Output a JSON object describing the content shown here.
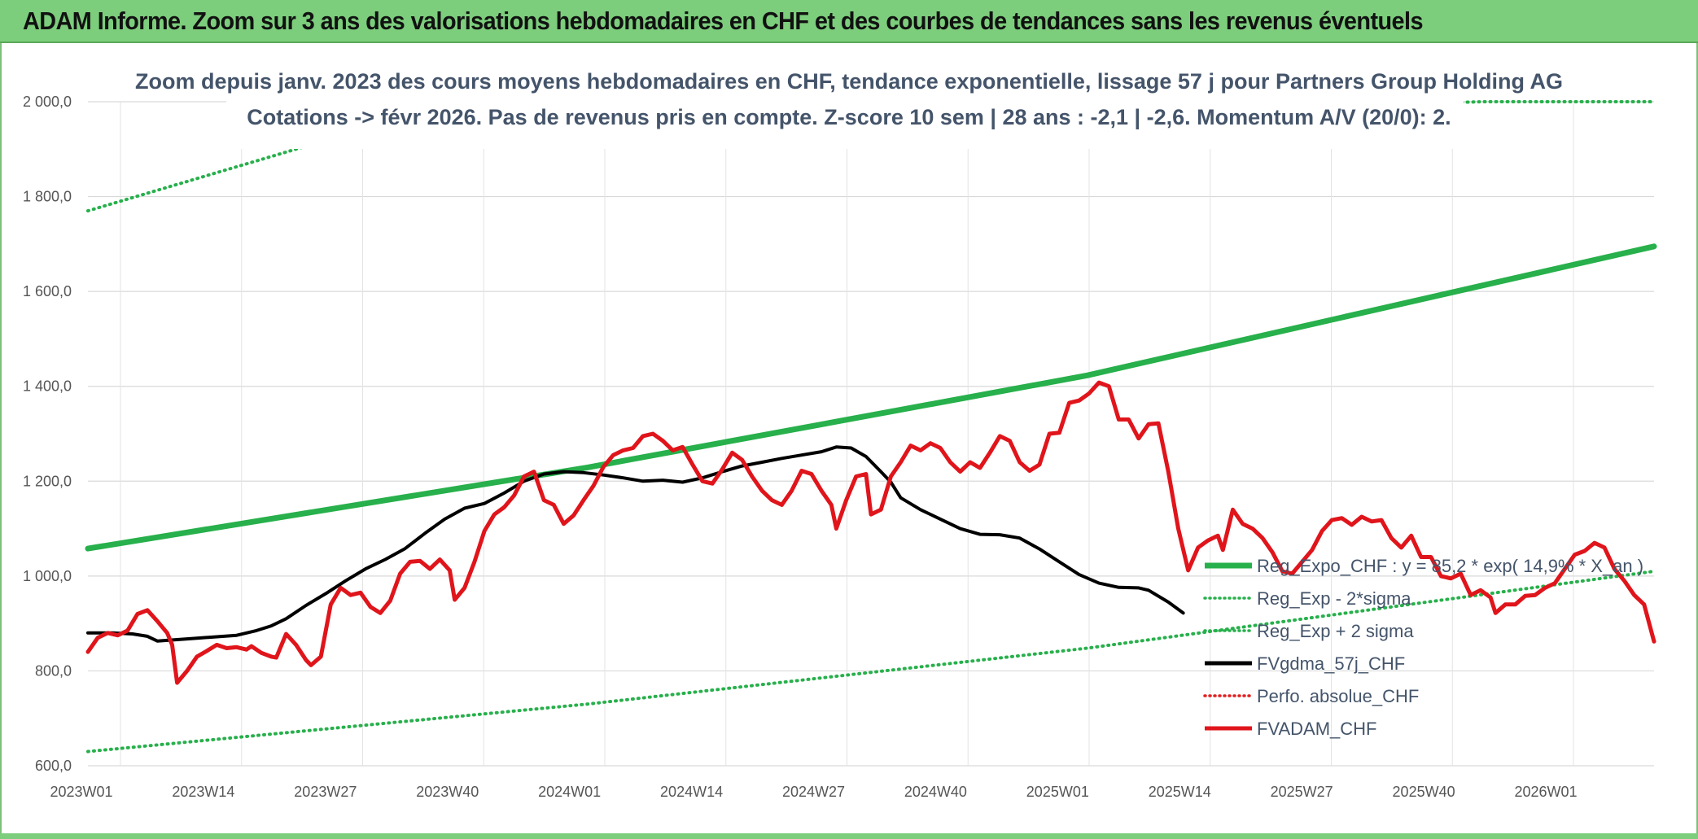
{
  "header": {
    "title": "ADAM Informe. Zoom sur 3 ans des valorisations hebdomadaires en CHF et des courbes de tendances sans les revenus éventuels"
  },
  "chart_data": {
    "type": "line",
    "title": "Zoom depuis janv. 2023 des cours moyens hebdomadaires en CHF, tendance exponentielle, lissage 57 j pour Partners Group Holding AG",
    "subtitle": "Cotations -> févr 2026. Pas de revenus pris en compte. Z-score 10 sem | 28 ans : -2,1 | -2,6. Momentum A/V (20/0): 2.",
    "xlabel": "",
    "ylabel": "",
    "ylim": [
      600,
      2000
    ],
    "y_ticks": [
      "600,0",
      "800,0",
      "1 000,0",
      "1 200,0",
      "1 400,0",
      "1 600,0",
      "1 800,0",
      "2 000,0"
    ],
    "x_ticks": [
      "2023W01",
      "2023W14",
      "2023W27",
      "2023W40",
      "2024W01",
      "2024W14",
      "2024W27",
      "2024W40",
      "2025W01",
      "2025W14",
      "2025W27",
      "2025W40",
      "2026W01"
    ],
    "grid": true,
    "legend_position": "bottom-right",
    "series": [
      {
        "name": "Reg_Expo_CHF : y = 85,2 * exp( 14,9% * X_an )",
        "color": "#27b04b",
        "style": "solid",
        "points": [
          [
            0,
            1058
          ],
          [
            52,
            1229
          ],
          [
            104,
            1423
          ],
          [
            163,
            1695
          ]
        ]
      },
      {
        "name": "Reg_Exp - 2*sigma",
        "color": "#27b04b",
        "style": "dotted",
        "points": [
          [
            0,
            630
          ],
          [
            52,
            730
          ],
          [
            104,
            848
          ],
          [
            163,
            1010
          ]
        ]
      },
      {
        "name": "Reg_Exp + 2 sigma",
        "color": "#27b04b",
        "style": "dotted",
        "points": [
          [
            0,
            1770
          ],
          [
            25,
            1920
          ],
          [
            145,
            2000
          ],
          [
            163,
            2000
          ]
        ]
      },
      {
        "name": "FVgdma_57j_CHF",
        "color": "#000000",
        "style": "solid",
        "points": [
          [
            0,
            880
          ],
          [
            5,
            880
          ],
          [
            9,
            878
          ],
          [
            12,
            873
          ],
          [
            14,
            863
          ],
          [
            18,
            866
          ],
          [
            22,
            869
          ],
          [
            26,
            872
          ],
          [
            30,
            875
          ],
          [
            34,
            885
          ],
          [
            37,
            895
          ],
          [
            40,
            910
          ],
          [
            44,
            938
          ],
          [
            48,
            963
          ],
          [
            52,
            990
          ],
          [
            56,
            1015
          ],
          [
            60,
            1035
          ],
          [
            64,
            1058
          ],
          [
            68,
            1090
          ],
          [
            72,
            1120
          ],
          [
            76,
            1143
          ],
          [
            80,
            1153
          ],
          [
            84,
            1175
          ],
          [
            88,
            1200
          ],
          [
            92,
            1215
          ],
          [
            96,
            1220
          ],
          [
            100,
            1218
          ],
          [
            104,
            1213
          ],
          [
            108,
            1207
          ],
          [
            112,
            1200
          ],
          [
            116,
            1202
          ],
          [
            120,
            1198
          ],
          [
            124,
            1207
          ],
          [
            128,
            1220
          ],
          [
            132,
            1232
          ],
          [
            136,
            1240
          ],
          [
            140,
            1248
          ],
          [
            144,
            1255
          ],
          [
            148,
            1262
          ],
          [
            151,
            1272
          ],
          [
            154,
            1270
          ],
          [
            157,
            1252
          ],
          [
            160,
            1220
          ],
          [
            162,
            1198
          ],
          [
            164,
            1165
          ],
          [
            168,
            1140
          ],
          [
            172,
            1120
          ],
          [
            176,
            1100
          ],
          [
            180,
            1088
          ],
          [
            184,
            1087
          ],
          [
            188,
            1080
          ],
          [
            192,
            1057
          ],
          [
            196,
            1030
          ],
          [
            200,
            1003
          ],
          [
            204,
            985
          ],
          [
            208,
            976
          ],
          [
            212,
            975
          ],
          [
            214,
            970
          ],
          [
            218,
            945
          ],
          [
            221,
            922
          ]
        ]
      },
      {
        "name": "Perfo. absolue_CHF",
        "color": "#e02020",
        "style": "dotted",
        "points": []
      },
      {
        "name": "FVADAM_CHF",
        "color": "#e0151b",
        "style": "solid",
        "points": [
          [
            0,
            840
          ],
          [
            2,
            870
          ],
          [
            4,
            880
          ],
          [
            6,
            875
          ],
          [
            8,
            885
          ],
          [
            10,
            920
          ],
          [
            12,
            928
          ],
          [
            14,
            905
          ],
          [
            16,
            880
          ],
          [
            17,
            855
          ],
          [
            18,
            775
          ],
          [
            20,
            800
          ],
          [
            22,
            830
          ],
          [
            24,
            842
          ],
          [
            26,
            855
          ],
          [
            28,
            848
          ],
          [
            30,
            850
          ],
          [
            32,
            845
          ],
          [
            33,
            852
          ],
          [
            35,
            838
          ],
          [
            37,
            830
          ],
          [
            38,
            828
          ],
          [
            40,
            878
          ],
          [
            42,
            855
          ],
          [
            44,
            823
          ],
          [
            45,
            812
          ],
          [
            47,
            830
          ],
          [
            49,
            940
          ],
          [
            51,
            975
          ],
          [
            53,
            960
          ],
          [
            55,
            965
          ],
          [
            57,
            935
          ],
          [
            59,
            922
          ],
          [
            61,
            948
          ],
          [
            63,
            1005
          ],
          [
            65,
            1030
          ],
          [
            67,
            1032
          ],
          [
            69,
            1015
          ],
          [
            71,
            1035
          ],
          [
            73,
            1012
          ],
          [
            74,
            950
          ],
          [
            76,
            975
          ],
          [
            78,
            1030
          ],
          [
            80,
            1095
          ],
          [
            82,
            1130
          ],
          [
            84,
            1145
          ],
          [
            86,
            1170
          ],
          [
            88,
            1210
          ],
          [
            90,
            1220
          ],
          [
            92,
            1160
          ],
          [
            94,
            1150
          ],
          [
            96,
            1110
          ],
          [
            98,
            1128
          ],
          [
            100,
            1160
          ],
          [
            102,
            1190
          ],
          [
            104,
            1230
          ],
          [
            106,
            1255
          ],
          [
            108,
            1265
          ],
          [
            110,
            1270
          ],
          [
            112,
            1295
          ],
          [
            114,
            1300
          ],
          [
            116,
            1285
          ],
          [
            118,
            1265
          ],
          [
            120,
            1272
          ],
          [
            122,
            1235
          ],
          [
            124,
            1200
          ],
          [
            126,
            1195
          ],
          [
            128,
            1225
          ],
          [
            130,
            1260
          ],
          [
            132,
            1245
          ],
          [
            134,
            1210
          ],
          [
            136,
            1180
          ],
          [
            138,
            1160
          ],
          [
            140,
            1150
          ],
          [
            142,
            1180
          ],
          [
            144,
            1222
          ],
          [
            146,
            1215
          ],
          [
            148,
            1180
          ],
          [
            150,
            1150
          ],
          [
            151,
            1100
          ],
          [
            153,
            1160
          ],
          [
            155,
            1210
          ],
          [
            157,
            1215
          ],
          [
            158,
            1130
          ],
          [
            160,
            1140
          ],
          [
            162,
            1210
          ],
          [
            164,
            1240
          ],
          [
            166,
            1275
          ],
          [
            168,
            1265
          ],
          [
            170,
            1280
          ],
          [
            172,
            1270
          ],
          [
            174,
            1240
          ],
          [
            176,
            1220
          ],
          [
            178,
            1240
          ],
          [
            180,
            1228
          ],
          [
            182,
            1260
          ],
          [
            184,
            1295
          ],
          [
            186,
            1285
          ],
          [
            188,
            1240
          ],
          [
            190,
            1222
          ],
          [
            192,
            1235
          ],
          [
            194,
            1300
          ],
          [
            196,
            1302
          ],
          [
            198,
            1365
          ],
          [
            200,
            1370
          ],
          [
            202,
            1385
          ],
          [
            204,
            1408
          ],
          [
            206,
            1400
          ],
          [
            208,
            1330
          ],
          [
            210,
            1330
          ],
          [
            212,
            1290
          ],
          [
            214,
            1320
          ],
          [
            216,
            1322
          ],
          [
            218,
            1220
          ],
          [
            220,
            1100
          ],
          [
            222,
            1012
          ],
          [
            224,
            1060
          ],
          [
            226,
            1075
          ],
          [
            228,
            1085
          ],
          [
            229,
            1055
          ],
          [
            231,
            1140
          ],
          [
            233,
            1110
          ],
          [
            235,
            1100
          ],
          [
            237,
            1080
          ],
          [
            239,
            1050
          ],
          [
            241,
            1010
          ],
          [
            243,
            1005
          ],
          [
            245,
            1030
          ],
          [
            247,
            1055
          ],
          [
            249,
            1095
          ],
          [
            251,
            1118
          ],
          [
            253,
            1122
          ],
          [
            255,
            1108
          ],
          [
            257,
            1125
          ],
          [
            259,
            1115
          ],
          [
            261,
            1118
          ],
          [
            263,
            1080
          ],
          [
            265,
            1060
          ],
          [
            267,
            1085
          ],
          [
            269,
            1040
          ],
          [
            271,
            1040
          ],
          [
            273,
            1000
          ],
          [
            275,
            995
          ],
          [
            277,
            1005
          ],
          [
            279,
            960
          ],
          [
            281,
            970
          ],
          [
            283,
            955
          ],
          [
            284,
            922
          ],
          [
            286,
            940
          ],
          [
            288,
            940
          ],
          [
            290,
            958
          ],
          [
            292,
            960
          ],
          [
            294,
            975
          ],
          [
            296,
            985
          ],
          [
            298,
            1015
          ],
          [
            300,
            1045
          ],
          [
            302,
            1053
          ],
          [
            304,
            1070
          ],
          [
            306,
            1060
          ],
          [
            308,
            1015
          ],
          [
            310,
            990
          ],
          [
            312,
            960
          ],
          [
            314,
            940
          ],
          [
            316,
            862
          ]
        ]
      }
    ]
  }
}
